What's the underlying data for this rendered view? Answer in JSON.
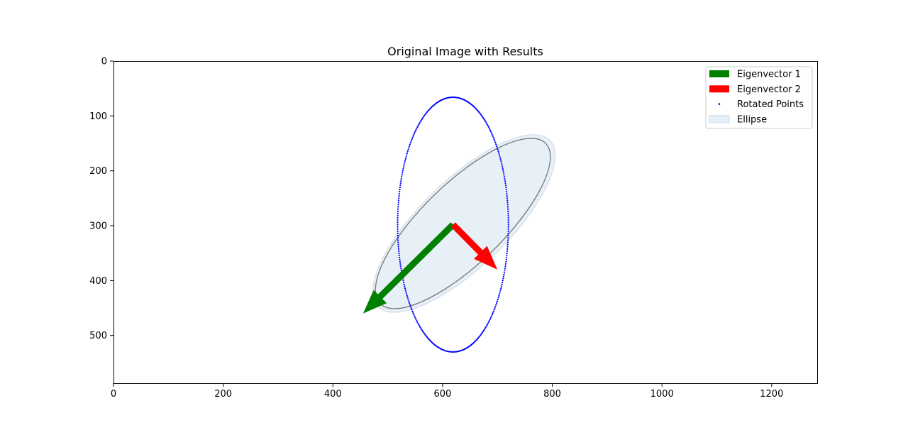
{
  "chart_data": {
    "type": "scatter",
    "title": "Original Image with Results",
    "xlabel": "",
    "ylabel": "",
    "xlim": [
      0,
      1283
    ],
    "ylim": [
      587,
      0
    ],
    "y_inverted": true,
    "x_ticks": [
      0,
      200,
      400,
      600,
      800,
      1000,
      1200
    ],
    "y_ticks": [
      0,
      100,
      200,
      300,
      400,
      500
    ],
    "legend": {
      "position": "top-right",
      "entries": [
        {
          "label": "Eigenvector 1",
          "color": "#008000",
          "kind": "bar"
        },
        {
          "label": "Eigenvector 2",
          "color": "#ff0000",
          "kind": "bar"
        },
        {
          "label": "Rotated Points",
          "color": "#0000ff",
          "kind": "dot"
        },
        {
          "label": "Ellipse",
          "color": "#e6eef7",
          "kind": "patch"
        }
      ]
    },
    "eigenvectors": [
      {
        "name": "Eigenvector 1",
        "color": "#008000",
        "origin": [
          619,
          298
        ],
        "tip": [
          455,
          460
        ]
      },
      {
        "name": "Eigenvector 2",
        "color": "#ff0000",
        "origin": [
          619,
          298
        ],
        "tip": [
          700,
          380
        ]
      }
    ],
    "rotated_points": {
      "color": "#0000ff",
      "shape": "ellipse",
      "center": [
        619,
        298
      ],
      "semi_axis_x": 101,
      "semi_axis_y": 232,
      "rotation_deg": 0,
      "count": 360
    },
    "ellipse": {
      "fill": "#e6eef7",
      "center": [
        639,
        296
      ],
      "width": 436,
      "height": 159,
      "angle_deg": -44
    },
    "ellipse_outline": {
      "stroke": "#777777",
      "center": [
        637,
        296
      ],
      "width": 420,
      "height": 147,
      "angle_deg": -44
    }
  }
}
